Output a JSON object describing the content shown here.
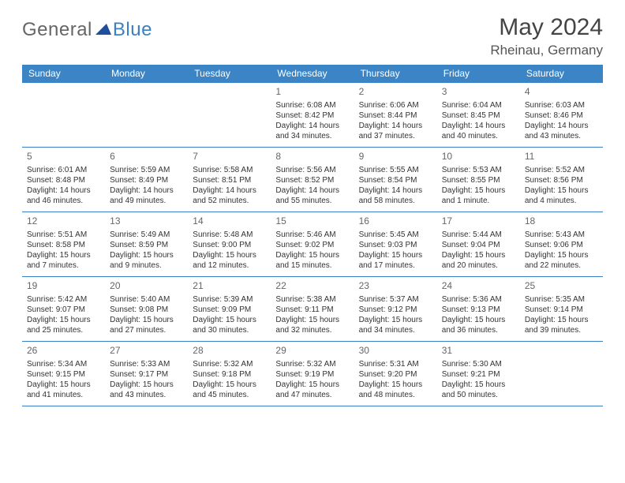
{
  "logo": {
    "part1": "General",
    "part2": "Blue"
  },
  "header": {
    "title": "May 2024",
    "location": "Rheinau, Germany"
  },
  "weekdays": [
    "Sunday",
    "Monday",
    "Tuesday",
    "Wednesday",
    "Thursday",
    "Friday",
    "Saturday"
  ],
  "colors": {
    "header_bg": "#3b85c6",
    "header_text": "#ffffff",
    "cell_border": "#3b7fc4",
    "text": "#333333",
    "daynum": "#666666",
    "background": "#ffffff"
  },
  "weeks": [
    [
      {
        "blank": true
      },
      {
        "blank": true
      },
      {
        "blank": true
      },
      {
        "day": "1",
        "sunrise": "Sunrise: 6:08 AM",
        "sunset": "Sunset: 8:42 PM",
        "daylight": "Daylight: 14 hours and 34 minutes."
      },
      {
        "day": "2",
        "sunrise": "Sunrise: 6:06 AM",
        "sunset": "Sunset: 8:44 PM",
        "daylight": "Daylight: 14 hours and 37 minutes."
      },
      {
        "day": "3",
        "sunrise": "Sunrise: 6:04 AM",
        "sunset": "Sunset: 8:45 PM",
        "daylight": "Daylight: 14 hours and 40 minutes."
      },
      {
        "day": "4",
        "sunrise": "Sunrise: 6:03 AM",
        "sunset": "Sunset: 8:46 PM",
        "daylight": "Daylight: 14 hours and 43 minutes."
      }
    ],
    [
      {
        "day": "5",
        "sunrise": "Sunrise: 6:01 AM",
        "sunset": "Sunset: 8:48 PM",
        "daylight": "Daylight: 14 hours and 46 minutes."
      },
      {
        "day": "6",
        "sunrise": "Sunrise: 5:59 AM",
        "sunset": "Sunset: 8:49 PM",
        "daylight": "Daylight: 14 hours and 49 minutes."
      },
      {
        "day": "7",
        "sunrise": "Sunrise: 5:58 AM",
        "sunset": "Sunset: 8:51 PM",
        "daylight": "Daylight: 14 hours and 52 minutes."
      },
      {
        "day": "8",
        "sunrise": "Sunrise: 5:56 AM",
        "sunset": "Sunset: 8:52 PM",
        "daylight": "Daylight: 14 hours and 55 minutes."
      },
      {
        "day": "9",
        "sunrise": "Sunrise: 5:55 AM",
        "sunset": "Sunset: 8:54 PM",
        "daylight": "Daylight: 14 hours and 58 minutes."
      },
      {
        "day": "10",
        "sunrise": "Sunrise: 5:53 AM",
        "sunset": "Sunset: 8:55 PM",
        "daylight": "Daylight: 15 hours and 1 minute."
      },
      {
        "day": "11",
        "sunrise": "Sunrise: 5:52 AM",
        "sunset": "Sunset: 8:56 PM",
        "daylight": "Daylight: 15 hours and 4 minutes."
      }
    ],
    [
      {
        "day": "12",
        "sunrise": "Sunrise: 5:51 AM",
        "sunset": "Sunset: 8:58 PM",
        "daylight": "Daylight: 15 hours and 7 minutes."
      },
      {
        "day": "13",
        "sunrise": "Sunrise: 5:49 AM",
        "sunset": "Sunset: 8:59 PM",
        "daylight": "Daylight: 15 hours and 9 minutes."
      },
      {
        "day": "14",
        "sunrise": "Sunrise: 5:48 AM",
        "sunset": "Sunset: 9:00 PM",
        "daylight": "Daylight: 15 hours and 12 minutes."
      },
      {
        "day": "15",
        "sunrise": "Sunrise: 5:46 AM",
        "sunset": "Sunset: 9:02 PM",
        "daylight": "Daylight: 15 hours and 15 minutes."
      },
      {
        "day": "16",
        "sunrise": "Sunrise: 5:45 AM",
        "sunset": "Sunset: 9:03 PM",
        "daylight": "Daylight: 15 hours and 17 minutes."
      },
      {
        "day": "17",
        "sunrise": "Sunrise: 5:44 AM",
        "sunset": "Sunset: 9:04 PM",
        "daylight": "Daylight: 15 hours and 20 minutes."
      },
      {
        "day": "18",
        "sunrise": "Sunrise: 5:43 AM",
        "sunset": "Sunset: 9:06 PM",
        "daylight": "Daylight: 15 hours and 22 minutes."
      }
    ],
    [
      {
        "day": "19",
        "sunrise": "Sunrise: 5:42 AM",
        "sunset": "Sunset: 9:07 PM",
        "daylight": "Daylight: 15 hours and 25 minutes."
      },
      {
        "day": "20",
        "sunrise": "Sunrise: 5:40 AM",
        "sunset": "Sunset: 9:08 PM",
        "daylight": "Daylight: 15 hours and 27 minutes."
      },
      {
        "day": "21",
        "sunrise": "Sunrise: 5:39 AM",
        "sunset": "Sunset: 9:09 PM",
        "daylight": "Daylight: 15 hours and 30 minutes."
      },
      {
        "day": "22",
        "sunrise": "Sunrise: 5:38 AM",
        "sunset": "Sunset: 9:11 PM",
        "daylight": "Daylight: 15 hours and 32 minutes."
      },
      {
        "day": "23",
        "sunrise": "Sunrise: 5:37 AM",
        "sunset": "Sunset: 9:12 PM",
        "daylight": "Daylight: 15 hours and 34 minutes."
      },
      {
        "day": "24",
        "sunrise": "Sunrise: 5:36 AM",
        "sunset": "Sunset: 9:13 PM",
        "daylight": "Daylight: 15 hours and 36 minutes."
      },
      {
        "day": "25",
        "sunrise": "Sunrise: 5:35 AM",
        "sunset": "Sunset: 9:14 PM",
        "daylight": "Daylight: 15 hours and 39 minutes."
      }
    ],
    [
      {
        "day": "26",
        "sunrise": "Sunrise: 5:34 AM",
        "sunset": "Sunset: 9:15 PM",
        "daylight": "Daylight: 15 hours and 41 minutes."
      },
      {
        "day": "27",
        "sunrise": "Sunrise: 5:33 AM",
        "sunset": "Sunset: 9:17 PM",
        "daylight": "Daylight: 15 hours and 43 minutes."
      },
      {
        "day": "28",
        "sunrise": "Sunrise: 5:32 AM",
        "sunset": "Sunset: 9:18 PM",
        "daylight": "Daylight: 15 hours and 45 minutes."
      },
      {
        "day": "29",
        "sunrise": "Sunrise: 5:32 AM",
        "sunset": "Sunset: 9:19 PM",
        "daylight": "Daylight: 15 hours and 47 minutes."
      },
      {
        "day": "30",
        "sunrise": "Sunrise: 5:31 AM",
        "sunset": "Sunset: 9:20 PM",
        "daylight": "Daylight: 15 hours and 48 minutes."
      },
      {
        "day": "31",
        "sunrise": "Sunrise: 5:30 AM",
        "sunset": "Sunset: 9:21 PM",
        "daylight": "Daylight: 15 hours and 50 minutes."
      },
      {
        "blank": true
      }
    ]
  ]
}
